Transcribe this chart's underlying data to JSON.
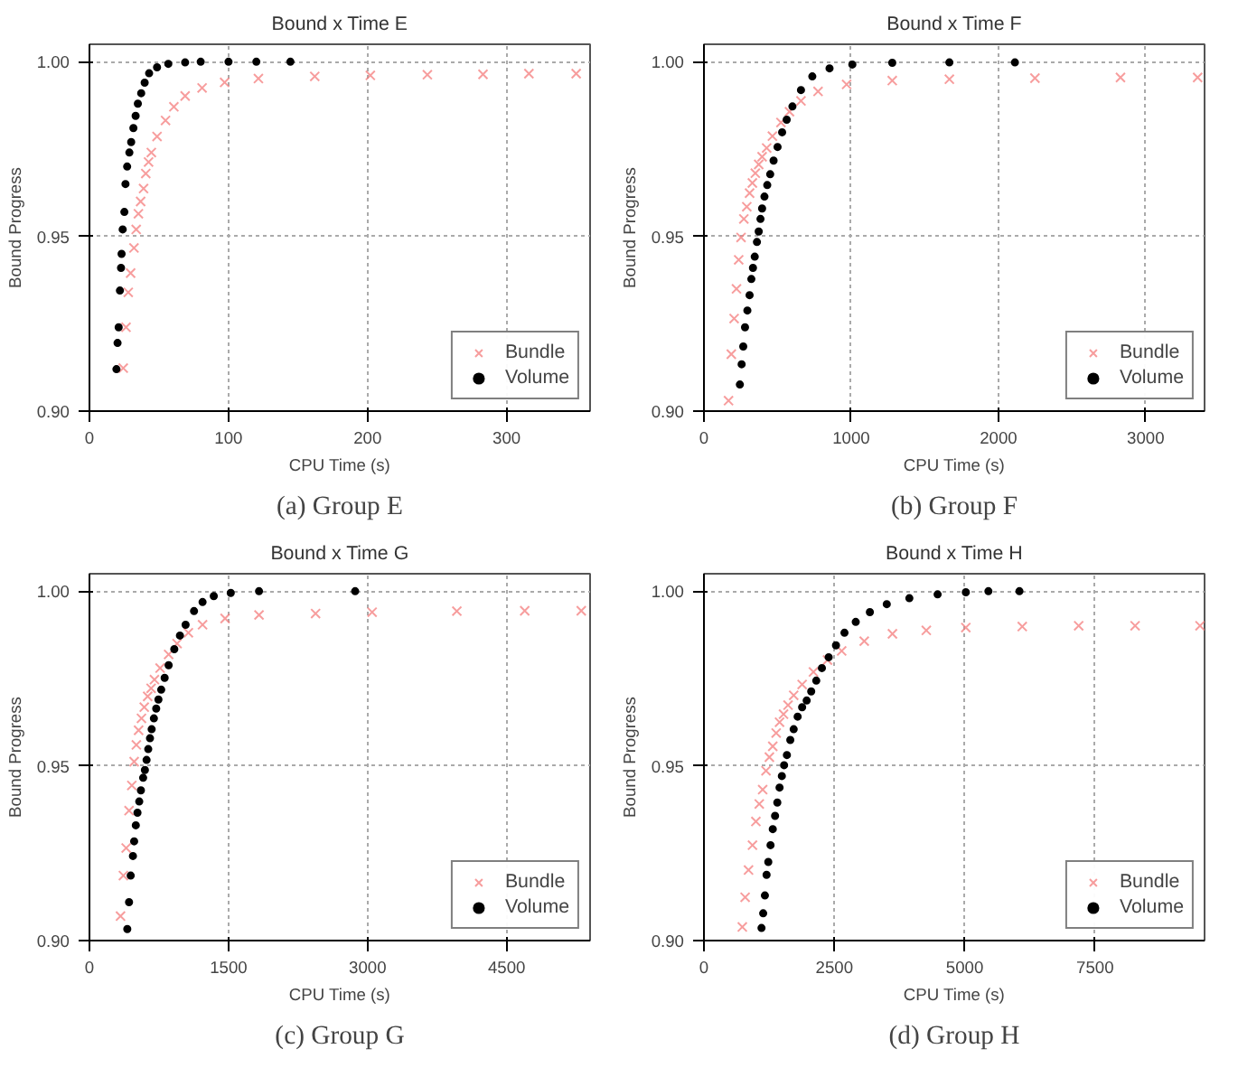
{
  "chart_data": [
    {
      "type": "scatter",
      "title": "Bound x Time E",
      "xlabel": "CPU Time (s)",
      "ylabel": "Bound Progress",
      "annotations": [
        "(a) Group E"
      ],
      "xlim": [
        0,
        360
      ],
      "xticks": [
        0,
        100,
        200,
        300
      ],
      "ylim": [
        0.9,
        1.005
      ],
      "yticks": [
        {
          "value": 0.9,
          "label": "0.90"
        },
        {
          "value": 0.95,
          "label": "0.95"
        },
        {
          "value": 1.0,
          "label": "1.00"
        }
      ],
      "grid": true,
      "legend": "bottom right",
      "series": [
        {
          "name": "Bundle",
          "color": "#f47c7c",
          "marker": "cross",
          "x": [
            24.3,
            26.3,
            27.9,
            29.6,
            32,
            33.6,
            35.2,
            36.8,
            38.9,
            40.5,
            42.5,
            44.5,
            48.6,
            54.7,
            60.7,
            68.8,
            81,
            97.2,
            121.5,
            162,
            202,
            243,
            283,
            316,
            350
          ],
          "values": [
            0.9123,
            0.924,
            0.934,
            0.9395,
            0.9467,
            0.952,
            0.9565,
            0.96,
            0.9637,
            0.968,
            0.9713,
            0.974,
            0.9786,
            0.9832,
            0.9871,
            0.9902,
            0.9925,
            0.9941,
            0.9952,
            0.9958,
            0.9961,
            0.9963,
            0.9964,
            0.9966,
            0.9966
          ]
        },
        {
          "name": "Volume",
          "color": "#000000",
          "marker": "circle",
          "x": [
            19.4,
            20.2,
            21,
            21.9,
            22.7,
            23.1,
            23.9,
            25.1,
            25.9,
            27.1,
            28.7,
            30,
            31.6,
            33.2,
            34.8,
            37.2,
            39.7,
            42.9,
            48.6,
            56.7,
            68.8,
            80,
            100,
            120,
            144.5
          ],
          "values": [
            0.912,
            0.9195,
            0.924,
            0.9345,
            0.941,
            0.945,
            0.952,
            0.957,
            0.965,
            0.97,
            0.974,
            0.977,
            0.981,
            0.9845,
            0.988,
            0.991,
            0.994,
            0.9967,
            0.9984,
            0.9994,
            0.9998,
            1.0,
            1.0,
            1.0,
            1.0
          ]
        }
      ]
    },
    {
      "type": "scatter",
      "title": "Bound x Time F",
      "xlabel": "CPU Time (s)",
      "ylabel": "Bound Progress",
      "annotations": [
        "(b) Group F"
      ],
      "xlim": [
        0,
        3400
      ],
      "xticks": [
        0,
        1000,
        2000,
        3000
      ],
      "ylim": [
        0.9,
        1.005
      ],
      "yticks": [
        {
          "value": 0.9,
          "label": "0.90"
        },
        {
          "value": 0.95,
          "label": "0.95"
        },
        {
          "value": 1.0,
          "label": "1.00"
        }
      ],
      "grid": true,
      "legend": "bottom right",
      "series": [
        {
          "name": "Bundle",
          "color": "#f47c7c",
          "marker": "cross",
          "x": [
            167,
            186,
            205,
            221,
            236,
            252,
            271,
            291,
            310,
            329,
            349,
            372,
            395,
            426,
            465,
            523,
            581,
            659,
            775,
            969,
            1279,
            1667,
            2248,
            2829,
            3353
          ],
          "values": [
            0.903,
            0.9163,
            0.9265,
            0.935,
            0.9433,
            0.9497,
            0.955,
            0.9585,
            0.9624,
            0.9653,
            0.9681,
            0.9706,
            0.9728,
            0.9753,
            0.9787,
            0.9826,
            0.9857,
            0.9888,
            0.9915,
            0.9935,
            0.9946,
            0.995,
            0.9953,
            0.9955,
            0.9955
          ]
        },
        {
          "name": "Volume",
          "color": "#000000",
          "marker": "circle",
          "x": [
            244,
            256,
            267,
            279,
            295,
            310,
            322,
            333,
            345,
            360,
            372,
            384,
            395,
            411,
            430,
            450,
            473,
            500,
            531,
            562,
            601,
            659,
            736,
            853,
            1008,
            1279,
            1667,
            2112
          ],
          "values": [
            0.9076,
            0.9134,
            0.9185,
            0.924,
            0.9288,
            0.9332,
            0.9378,
            0.941,
            0.9442,
            0.9484,
            0.9514,
            0.955,
            0.958,
            0.9614,
            0.9647,
            0.9678,
            0.9717,
            0.9756,
            0.9798,
            0.9834,
            0.9872,
            0.9919,
            0.9958,
            0.9981,
            0.9992,
            0.9997,
            0.9998,
            0.9998
          ]
        }
      ]
    },
    {
      "type": "scatter",
      "title": "Bound x Time G",
      "xlabel": "CPU Time (s)",
      "ylabel": "Bound Progress",
      "annotations": [
        "(c) Group G"
      ],
      "xlim": [
        0,
        5400
      ],
      "xticks": [
        0,
        1500,
        3000,
        4500
      ],
      "ylim": [
        0.9,
        1.005
      ],
      "yticks": [
        {
          "value": 0.9,
          "label": "0.90"
        },
        {
          "value": 0.95,
          "label": "0.95"
        },
        {
          "value": 1.0,
          "label": "1.00"
        }
      ],
      "grid": true,
      "legend": "bottom right",
      "series": [
        {
          "name": "Bundle",
          "color": "#f47c7c",
          "marker": "cross",
          "x": [
            335,
            366,
            396,
            427,
            457,
            482,
            506,
            530,
            561,
            591,
            628,
            665,
            701,
            762,
            854,
            945,
            1067,
            1220,
            1463,
            1829,
            2439,
            3049,
            3963,
            4695,
            5305
          ],
          "values": [
            0.907,
            0.9186,
            0.9265,
            0.9372,
            0.9444,
            0.9512,
            0.956,
            0.9602,
            0.9636,
            0.9668,
            0.9699,
            0.9722,
            0.9747,
            0.978,
            0.9819,
            0.985,
            0.9881,
            0.9904,
            0.9922,
            0.9932,
            0.9936,
            0.994,
            0.9943,
            0.9944,
            0.9944
          ]
        },
        {
          "name": "Volume",
          "color": "#000000",
          "marker": "circle",
          "x": [
            408,
            427,
            445,
            469,
            482,
            500,
            518,
            537,
            555,
            579,
            598,
            616,
            634,
            653,
            671,
            695,
            720,
            744,
            774,
            811,
            854,
            915,
            976,
            1037,
            1128,
            1220,
            1341,
            1524,
            1829,
            2866
          ],
          "values": [
            0.9033,
            0.911,
            0.9186,
            0.9242,
            0.9284,
            0.933,
            0.9366,
            0.9398,
            0.943,
            0.9466,
            0.9488,
            0.9517,
            0.9548,
            0.9579,
            0.9605,
            0.9636,
            0.9664,
            0.969,
            0.9718,
            0.9752,
            0.9788,
            0.9834,
            0.9873,
            0.9904,
            0.9943,
            0.9969,
            0.9986,
            0.9995,
            1.0,
            1.0
          ]
        }
      ]
    },
    {
      "type": "scatter",
      "title": "Bound x Time H",
      "xlabel": "CPU Time (s)",
      "ylabel": "Bound Progress",
      "annotations": [
        "(d) Group H"
      ],
      "xlim": [
        0,
        9600
      ],
      "xticks": [
        0,
        2500,
        5000,
        7500
      ],
      "ylim": [
        0.9,
        1.005
      ],
      "yticks": [
        {
          "value": 0.9,
          "label": "0.90"
        },
        {
          "value": 0.95,
          "label": "0.95"
        },
        {
          "value": 1.0,
          "label": "1.00"
        }
      ],
      "grid": true,
      "legend": "bottom right",
      "series": [
        {
          "name": "Bundle",
          "color": "#f47c7c",
          "marker": "cross",
          "x": [
            736,
            790,
            855,
            931,
            996,
            1061,
            1126,
            1190,
            1255,
            1320,
            1385,
            1450,
            1526,
            1613,
            1721,
            1883,
            2100,
            2370,
            2641,
            3074,
            3615,
            4264,
            5022,
            6104,
            7186,
            8268,
            9513
          ],
          "values": [
            0.9039,
            0.9124,
            0.9202,
            0.9273,
            0.9341,
            0.9391,
            0.9432,
            0.9486,
            0.9525,
            0.9556,
            0.9594,
            0.9625,
            0.9648,
            0.9674,
            0.9702,
            0.9733,
            0.9769,
            0.9803,
            0.9829,
            0.9857,
            0.9878,
            0.9888,
            0.9896,
            0.9899,
            0.9901,
            0.9901,
            0.9901
          ]
        },
        {
          "name": "Volume",
          "color": "#000000",
          "marker": "circle",
          "x": [
            1104,
            1136,
            1169,
            1201,
            1234,
            1277,
            1320,
            1364,
            1407,
            1450,
            1494,
            1537,
            1591,
            1656,
            1721,
            1797,
            1883,
            1970,
            2057,
            2154,
            2262,
            2392,
            2532,
            2695,
            2911,
            3182,
            3506,
            3939,
            4481,
            5022,
            5455,
            6050
          ],
          "values": [
            0.9036,
            0.9078,
            0.9129,
            0.9188,
            0.9225,
            0.9273,
            0.9319,
            0.9357,
            0.9395,
            0.9438,
            0.9471,
            0.9502,
            0.9531,
            0.9574,
            0.9605,
            0.9641,
            0.9668,
            0.9687,
            0.9713,
            0.9744,
            0.978,
            0.9811,
            0.9845,
            0.9881,
            0.9912,
            0.994,
            0.9963,
            0.998,
            0.9991,
            0.9997,
            1.0,
            1.0
          ]
        }
      ]
    }
  ]
}
